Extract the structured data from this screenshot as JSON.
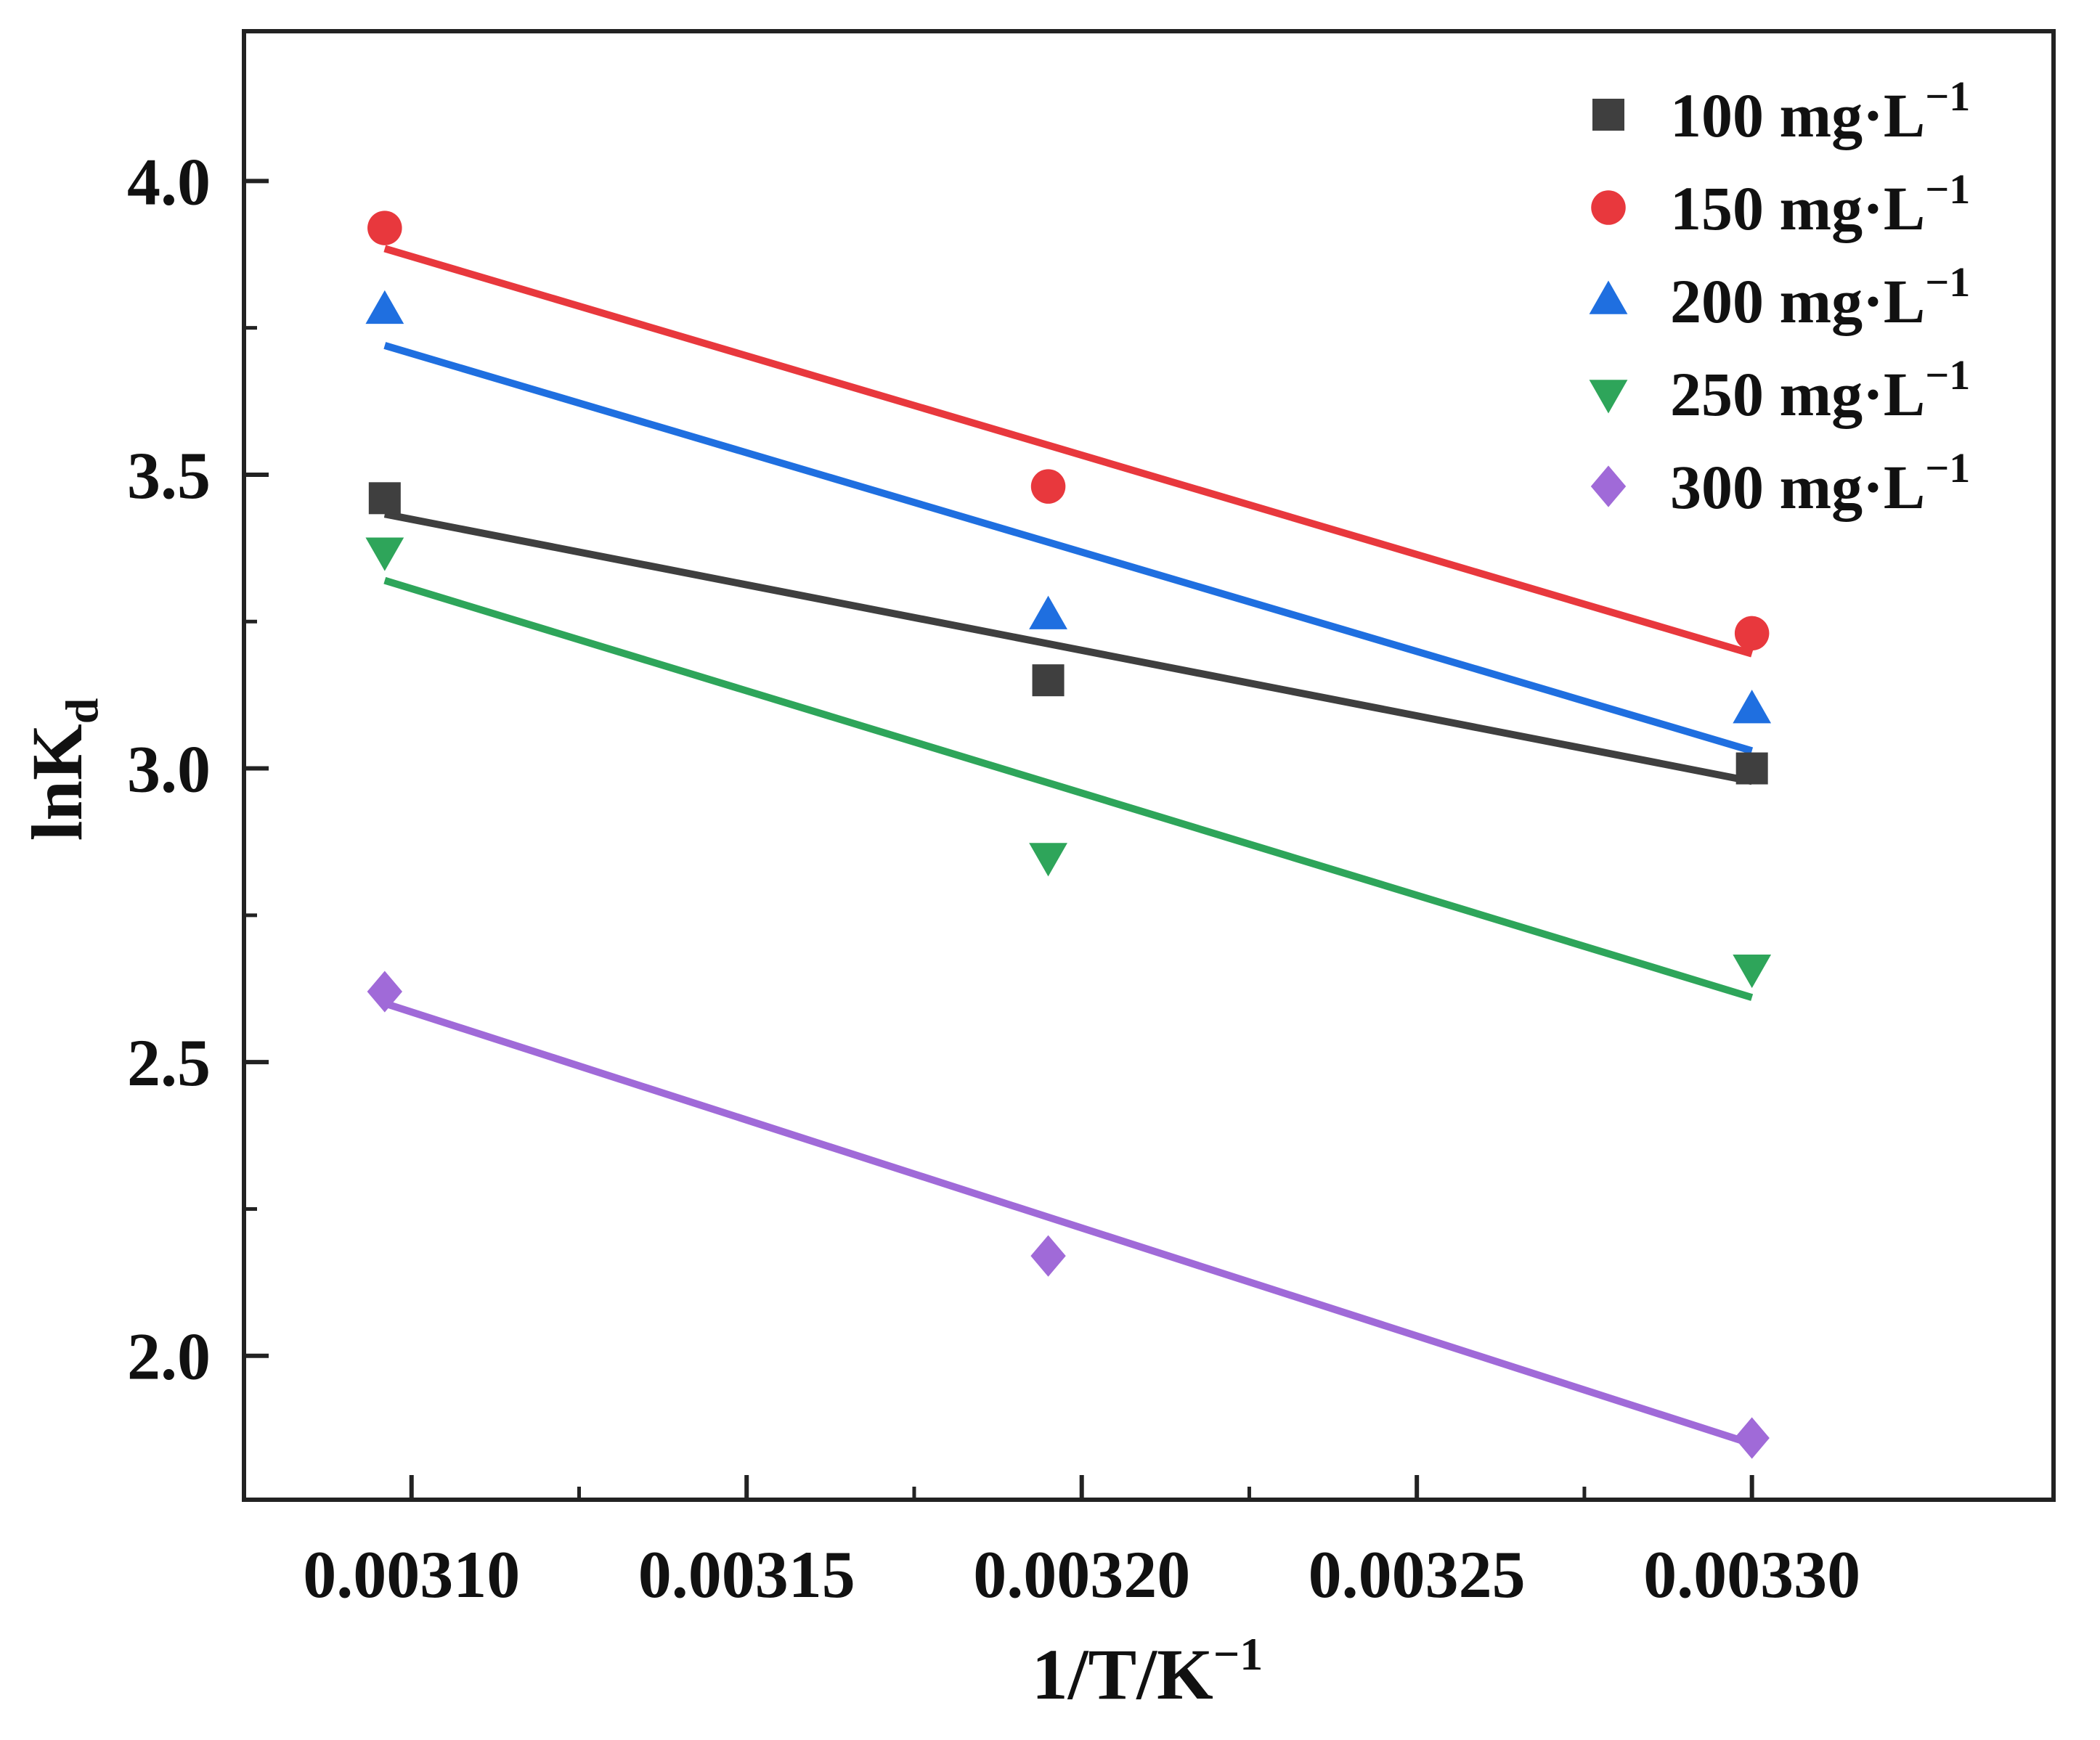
{
  "chart_data": {
    "type": "scatter",
    "title": "",
    "xlabel": {
      "main": "1/T/K",
      "sup": "−1"
    },
    "ylabel": {
      "main": "lnK",
      "sub": "d"
    },
    "xlim": [
      0.003075,
      0.003345
    ],
    "ylim": [
      1.755,
      4.255
    ],
    "xticks": [
      {
        "value": 0.0031,
        "label": "0.00310"
      },
      {
        "value": 0.00315,
        "label": "0.00315"
      },
      {
        "value": 0.0032,
        "label": "0.00320"
      },
      {
        "value": 0.00325,
        "label": "0.00325"
      },
      {
        "value": 0.0033,
        "label": "0.00330"
      }
    ],
    "yticks": [
      {
        "value": 2.0,
        "label": "2.0"
      },
      {
        "value": 2.5,
        "label": "2.5"
      },
      {
        "value": 3.0,
        "label": "3.0"
      },
      {
        "value": 3.5,
        "label": "3.5"
      },
      {
        "value": 4.0,
        "label": "4.0"
      }
    ],
    "x": [
      0.003096,
      0.003195,
      0.0033
    ],
    "legend_position": "top-right",
    "series": [
      {
        "name": "100 mg·L",
        "sup": "−1",
        "marker": "square",
        "color": "#3f3f3f",
        "values": [
          3.46,
          3.15,
          3.0
        ],
        "fit": [
          3.433,
          2.978
        ]
      },
      {
        "name": "150 mg·L",
        "sup": "−1",
        "marker": "circle",
        "color": "#e8383d",
        "values": [
          3.92,
          3.48,
          3.23
        ],
        "fit": [
          3.885,
          3.195
        ]
      },
      {
        "name": "200 mg·L",
        "sup": "−1",
        "marker": "triangle-up",
        "color": "#1f6fe0",
        "values": [
          3.78,
          3.26,
          3.1
        ],
        "fit": [
          3.72,
          3.03
        ]
      },
      {
        "name": "250 mg·L",
        "sup": "−1",
        "marker": "triangle-down",
        "color": "#2ea55a",
        "values": [
          3.37,
          2.85,
          2.66
        ],
        "fit": [
          3.32,
          2.61
        ]
      },
      {
        "name": "300 mg·L",
        "sup": "−1",
        "marker": "diamond",
        "color": "#a06ad8",
        "values": [
          2.62,
          2.17,
          1.86
        ],
        "fit": [
          2.6,
          1.85
        ]
      }
    ]
  }
}
